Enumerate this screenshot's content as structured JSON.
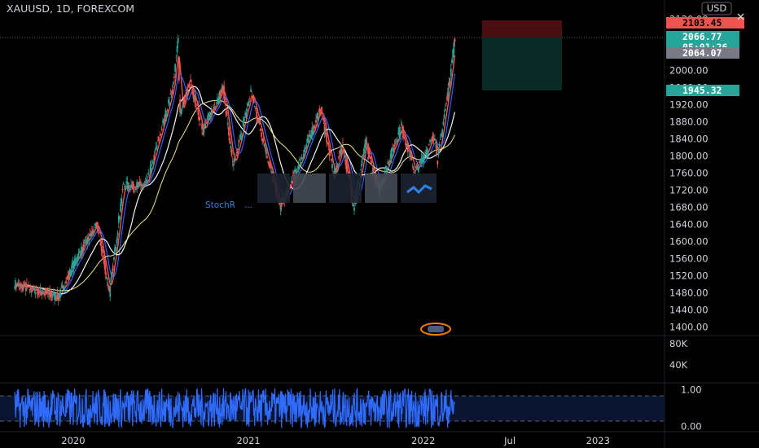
{
  "header": {
    "title": "XAUUSD, 1D, FOREXCOM"
  },
  "currency_button": "USD",
  "colors": {
    "background": "#000000",
    "up": "#26a69a",
    "down": "#ef5350",
    "ma_fast": "#ef5350",
    "ma_mid": "#2962ff",
    "ma_slow": "#f5f5f5",
    "ma_long": "#f0e68c",
    "rsi": "#2f6bff",
    "stop_zone": "#4a0f12",
    "target_zone": "#0b2a26"
  },
  "badges": {
    "stop": "2103.45",
    "last_price": "2066.77",
    "countdown": "05:01:26",
    "prev_close": "2064.07",
    "target": "1945.32"
  },
  "overlay": {
    "stoch_label": "StochR",
    "stoch_values": "..."
  },
  "chart_data": {
    "type": "candlestick",
    "title": "XAUUSD, 1D, FOREXCOM",
    "x_ticks": [
      "2020",
      "2021",
      "2022",
      "Jul",
      "2023"
    ],
    "price_axis": {
      "ticks": [
        2120,
        2080,
        2040,
        2000,
        1960,
        1920,
        1880,
        1840,
        1800,
        1760,
        1720,
        1680,
        1640,
        1600,
        1560,
        1520,
        1480,
        1440,
        1400
      ],
      "range": [
        1380,
        2130
      ]
    },
    "volume_axis": {
      "ticks": [
        "80K",
        "40K"
      ]
    },
    "oscillator_axis": {
      "ticks": [
        "1.00",
        "0.00"
      ],
      "range": [
        -0.15,
        1.15
      ]
    },
    "key_prices": {
      "high_2020": 2075,
      "last": 2066.77,
      "prev_close": 2064.07,
      "stop": 2103.45,
      "target": 1945.32
    },
    "anchor_path": [
      [
        "2019-09-01",
        1500
      ],
      [
        "2019-12-01",
        1470
      ],
      [
        "2020-01-08",
        1560
      ],
      [
        "2020-02-20",
        1640
      ],
      [
        "2020-03-17",
        1480
      ],
      [
        "2020-04-14",
        1730
      ],
      [
        "2020-06-01",
        1730
      ],
      [
        "2020-07-27",
        1960
      ],
      [
        "2020-08-07",
        2070
      ],
      [
        "2020-08-11",
        1900
      ],
      [
        "2020-09-01",
        1970
      ],
      [
        "2020-09-28",
        1860
      ],
      [
        "2020-11-09",
        1960
      ],
      [
        "2020-11-30",
        1770
      ],
      [
        "2021-01-06",
        1950
      ],
      [
        "2021-03-08",
        1680
      ],
      [
        "2021-04-20",
        1790
      ],
      [
        "2021-06-01",
        1910
      ],
      [
        "2021-06-29",
        1750
      ],
      [
        "2021-07-16",
        1830
      ],
      [
        "2021-08-09",
        1680
      ],
      [
        "2021-09-03",
        1830
      ],
      [
        "2021-09-29",
        1720
      ],
      [
        "2021-11-16",
        1870
      ],
      [
        "2021-12-15",
        1760
      ],
      [
        "2022-01-25",
        1850
      ],
      [
        "2022-01-31",
        1790
      ],
      [
        "2022-02-24",
        1970
      ],
      [
        "2022-03-08",
        2075
      ]
    ]
  }
}
